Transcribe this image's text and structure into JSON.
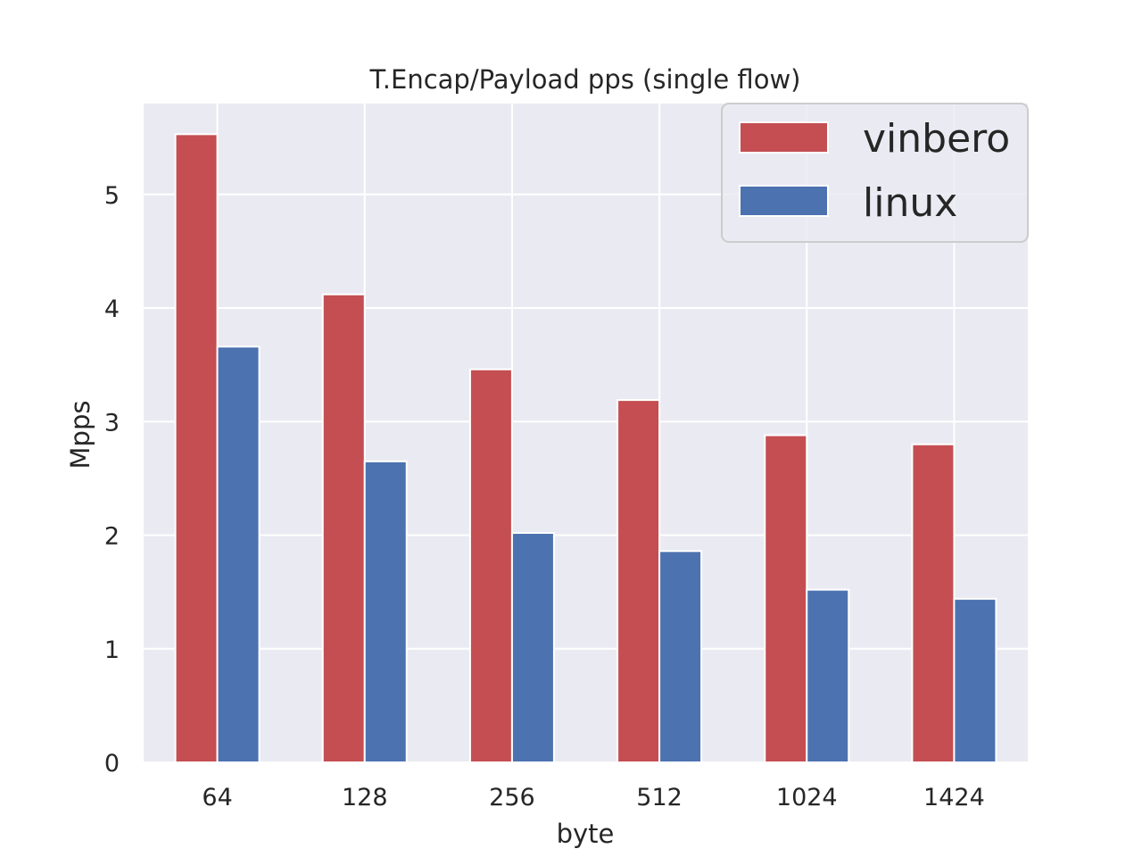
{
  "chart_data": {
    "type": "bar",
    "title": "T.Encap/Payload pps (single flow)",
    "xlabel": "byte",
    "ylabel": "Mpps",
    "categories": [
      "64",
      "128",
      "256",
      "512",
      "1024",
      "1424"
    ],
    "series": [
      {
        "name": "vinbero",
        "color": "#c44e52",
        "values": [
          5.53,
          4.12,
          3.46,
          3.19,
          2.88,
          2.8
        ]
      },
      {
        "name": "linux",
        "color": "#4c72b0",
        "values": [
          3.66,
          2.65,
          2.02,
          1.86,
          1.52,
          1.44
        ]
      }
    ],
    "ylim": [
      0,
      5.8
    ],
    "yticks": [
      0,
      1,
      2,
      3,
      4,
      5
    ],
    "grid": true,
    "legend": "top-right",
    "background_color": "#eaeaf2",
    "grid_color": "#ffffff"
  }
}
